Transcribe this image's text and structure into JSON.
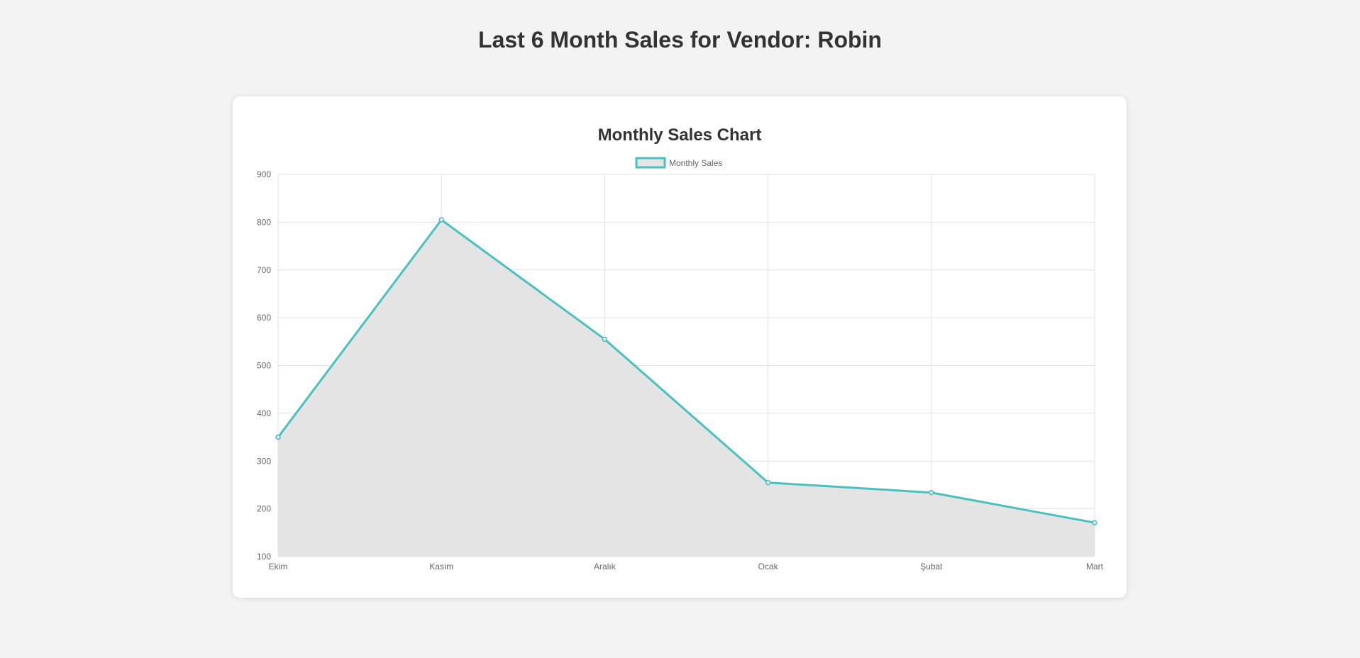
{
  "page": {
    "title": "Last 6 Month Sales for Vendor: Robin"
  },
  "chart_data": {
    "type": "line",
    "title": "Monthly Sales Chart",
    "categories": [
      "Ekim",
      "Kasım",
      "Aralık",
      "Ocak",
      "Şubat",
      "Mart"
    ],
    "series": [
      {
        "name": "Monthly Sales",
        "values": [
          350,
          805,
          555,
          255,
          234,
          171
        ],
        "border_color": "#4bc0c0",
        "fill_color": "#e4e4e4"
      }
    ],
    "xlabel": "",
    "ylabel": "",
    "ylim": [
      100,
      900
    ],
    "yticks": [
      900,
      800,
      700,
      600,
      500,
      400,
      300,
      200,
      100
    ],
    "grid": true,
    "legend": "top-center"
  }
}
